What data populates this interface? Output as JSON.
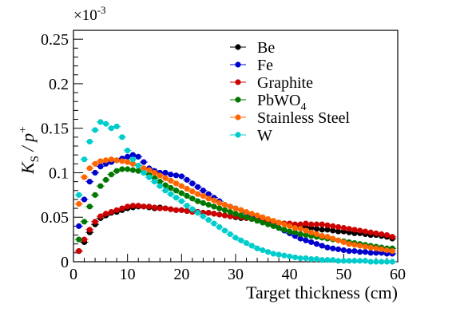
{
  "chart_data": {
    "type": "scatter",
    "title": "",
    "xlabel": "Target thickness (cm)",
    "ylabel_main": "K",
    "ylabel_sub": "S",
    "ylabel_rest": " / p",
    "ylabel_sup": "+",
    "y_multiplier_base": "×10",
    "y_multiplier_exp": "-3",
    "xlim": [
      0,
      60
    ],
    "ylim": [
      0,
      0.26
    ],
    "x_ticks": [
      0,
      10,
      20,
      30,
      40,
      50,
      60
    ],
    "x_tick_labels": [
      "0",
      "10",
      "20",
      "30",
      "40",
      "50",
      "60"
    ],
    "y_ticks": [
      0,
      0.05,
      0.1,
      0.15,
      0.2,
      0.25
    ],
    "y_tick_labels": [
      "0",
      "0.05",
      "0.1",
      "0.15",
      "0.2",
      "0.25"
    ],
    "legend_position": "top-right",
    "grid": false,
    "x": [
      1,
      2,
      3,
      4,
      5,
      6,
      7,
      8,
      9,
      10,
      11,
      12,
      13,
      14,
      15,
      16,
      17,
      18,
      19,
      20,
      21,
      22,
      23,
      24,
      25,
      26,
      27,
      28,
      29,
      30,
      31,
      32,
      33,
      34,
      35,
      36,
      37,
      38,
      39,
      40,
      41,
      42,
      43,
      44,
      45,
      46,
      47,
      48,
      49,
      50,
      51,
      52,
      53,
      54,
      55,
      56,
      57,
      58,
      59
    ],
    "series": [
      {
        "name": "Be",
        "sub": "",
        "color": "#000000",
        "values": [
          0.012,
          0.022,
          0.033,
          0.042,
          0.049,
          0.052,
          0.055,
          0.056,
          0.058,
          0.06,
          0.061,
          0.062,
          0.062,
          0.061,
          0.06,
          0.061,
          0.06,
          0.059,
          0.058,
          0.058,
          0.057,
          0.057,
          0.056,
          0.055,
          0.055,
          0.054,
          0.053,
          0.052,
          0.051,
          0.05,
          0.049,
          0.049,
          0.048,
          0.047,
          0.046,
          0.046,
          0.045,
          0.044,
          0.043,
          0.042,
          0.041,
          0.04,
          0.039,
          0.038,
          0.037,
          0.036,
          0.036,
          0.035,
          0.034,
          0.034,
          0.033,
          0.032,
          0.032,
          0.031,
          0.03,
          0.03,
          0.029,
          0.028,
          0.026
        ]
      },
      {
        "name": "Fe",
        "sub": "",
        "color": "#0000cc",
        "values": [
          0.04,
          0.07,
          0.09,
          0.1,
          0.107,
          0.11,
          0.112,
          0.114,
          0.116,
          0.118,
          0.12,
          0.118,
          0.112,
          0.105,
          0.102,
          0.1,
          0.1,
          0.098,
          0.097,
          0.096,
          0.092,
          0.088,
          0.084,
          0.08,
          0.076,
          0.072,
          0.068,
          0.064,
          0.062,
          0.06,
          0.058,
          0.055,
          0.052,
          0.05,
          0.047,
          0.044,
          0.041,
          0.038,
          0.035,
          0.032,
          0.029,
          0.026,
          0.024,
          0.022,
          0.02,
          0.018,
          0.016,
          0.015,
          0.014,
          0.013,
          0.012,
          0.012,
          0.011,
          0.011,
          0.01,
          0.01,
          0.01,
          0.009,
          0.009
        ]
      },
      {
        "name": "Graphite",
        "sub": "",
        "color": "#cc0000",
        "values": [
          0.012,
          0.025,
          0.036,
          0.045,
          0.051,
          0.054,
          0.056,
          0.058,
          0.06,
          0.062,
          0.063,
          0.063,
          0.062,
          0.062,
          0.061,
          0.06,
          0.06,
          0.059,
          0.058,
          0.058,
          0.057,
          0.056,
          0.056,
          0.055,
          0.055,
          0.054,
          0.053,
          0.052,
          0.051,
          0.051,
          0.05,
          0.049,
          0.048,
          0.047,
          0.047,
          0.046,
          0.045,
          0.044,
          0.043,
          0.043,
          0.042,
          0.042,
          0.043,
          0.042,
          0.042,
          0.042,
          0.041,
          0.04,
          0.039,
          0.038,
          0.037,
          0.036,
          0.035,
          0.034,
          0.033,
          0.032,
          0.031,
          0.03,
          0.028
        ]
      },
      {
        "name": "PbWO",
        "sub": "4",
        "color": "#007700",
        "values": [
          0.025,
          0.045,
          0.062,
          0.075,
          0.085,
          0.092,
          0.098,
          0.102,
          0.104,
          0.104,
          0.103,
          0.102,
          0.1,
          0.098,
          0.094,
          0.09,
          0.086,
          0.083,
          0.08,
          0.077,
          0.074,
          0.071,
          0.068,
          0.066,
          0.064,
          0.062,
          0.06,
          0.058,
          0.056,
          0.054,
          0.052,
          0.05,
          0.048,
          0.046,
          0.044,
          0.042,
          0.04,
          0.038,
          0.036,
          0.034,
          0.033,
          0.031,
          0.03,
          0.029,
          0.028,
          0.027,
          0.026,
          0.025,
          0.024,
          0.023,
          0.022,
          0.021,
          0.02,
          0.019,
          0.018,
          0.017,
          0.016,
          0.015,
          0.015
        ]
      },
      {
        "name": "Stainless Steel",
        "sub": "",
        "color": "#ff6600",
        "values": [
          0.065,
          0.095,
          0.105,
          0.11,
          0.113,
          0.114,
          0.115,
          0.114,
          0.113,
          0.112,
          0.11,
          0.108,
          0.105,
          0.103,
          0.1,
          0.097,
          0.094,
          0.091,
          0.088,
          0.085,
          0.082,
          0.079,
          0.076,
          0.074,
          0.071,
          0.069,
          0.066,
          0.064,
          0.062,
          0.06,
          0.058,
          0.056,
          0.054,
          0.052,
          0.05,
          0.048,
          0.046,
          0.044,
          0.042,
          0.04,
          0.038,
          0.037,
          0.035,
          0.033,
          0.031,
          0.029,
          0.028,
          0.026,
          0.024,
          0.022,
          0.02,
          0.019,
          0.018,
          0.017,
          0.016,
          0.015,
          0.014,
          0.013,
          0.012
        ]
      },
      {
        "name": "W",
        "sub": "",
        "color": "#00cccc",
        "values": [
          0.075,
          0.115,
          0.135,
          0.148,
          0.157,
          0.155,
          0.15,
          0.152,
          0.14,
          0.125,
          0.115,
          0.108,
          0.1,
          0.095,
          0.09,
          0.085,
          0.08,
          0.076,
          0.072,
          0.068,
          0.063,
          0.059,
          0.055,
          0.051,
          0.047,
          0.043,
          0.039,
          0.035,
          0.031,
          0.027,
          0.024,
          0.021,
          0.018,
          0.015,
          0.013,
          0.011,
          0.009,
          0.008,
          0.007,
          0.006,
          0.005,
          0.004,
          0.004,
          0.003,
          0.003,
          0.002,
          0.002,
          0.002,
          0.001,
          0.001,
          0.001,
          0.001,
          0.001,
          0.001,
          0.0,
          0.0,
          0.0,
          0.0,
          0.0
        ]
      }
    ]
  }
}
